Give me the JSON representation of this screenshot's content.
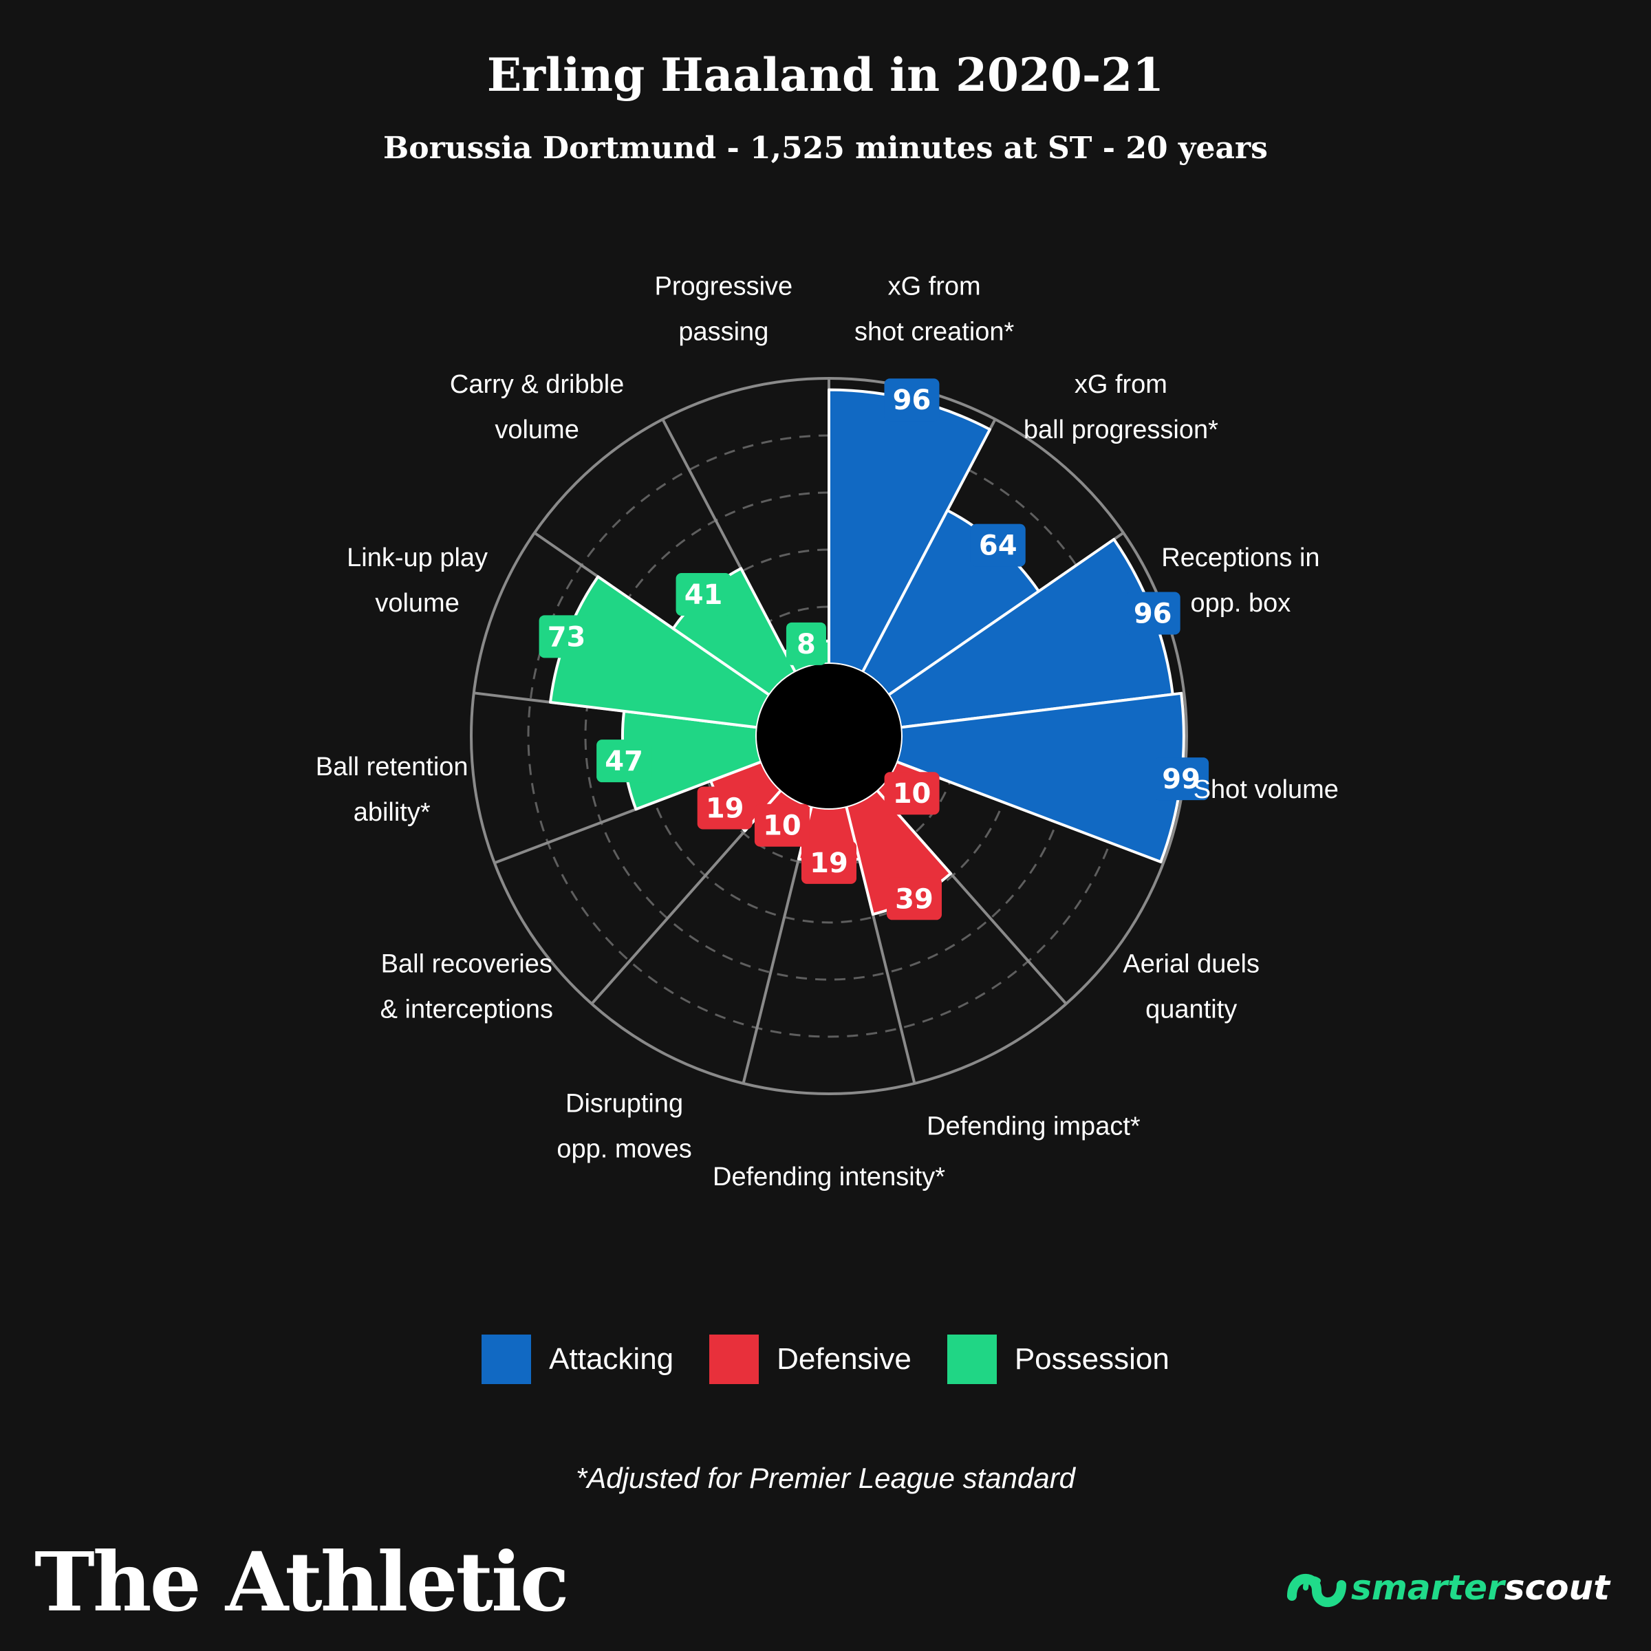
{
  "header": {
    "title": "Erling Haaland in 2020-21",
    "subtitle": "Borussia Dortmund - 1,525 minutes at ST - 20 years"
  },
  "colors": {
    "background": "#131313",
    "attacking": "#1169c3",
    "defensive": "#e8303b",
    "possession": "#20d685",
    "grid": "#8a8a8a",
    "inner_circle": "#000000"
  },
  "chart_data": {
    "type": "polar_bar",
    "scale": [
      0,
      100
    ],
    "categories": [
      {
        "label": [
          "xG from",
          "shot creation*"
        ],
        "value": 96,
        "group": "Attacking"
      },
      {
        "label": [
          "xG from",
          "ball progression*"
        ],
        "value": 64,
        "group": "Attacking"
      },
      {
        "label": [
          "Receptions in",
          "opp. box"
        ],
        "value": 96,
        "group": "Attacking"
      },
      {
        "label": [
          "Shot volume"
        ],
        "value": 99,
        "group": "Attacking"
      },
      {
        "label": [
          "Aerial duels",
          "quantity"
        ],
        "value": 10,
        "group": "Defensive"
      },
      {
        "label": [
          "Defending impact*"
        ],
        "value": 39,
        "group": "Defensive"
      },
      {
        "label": [
          "Defending intensity*"
        ],
        "value": 19,
        "group": "Defensive"
      },
      {
        "label": [
          "Disrupting",
          "opp. moves"
        ],
        "value": 10,
        "group": "Defensive"
      },
      {
        "label": [
          "Ball recoveries",
          "& interceptions"
        ],
        "value": 19,
        "group": "Defensive"
      },
      {
        "label": [
          "Ball retention",
          "ability*"
        ],
        "value": 47,
        "group": "Possession"
      },
      {
        "label": [
          "Link-up play",
          "volume"
        ],
        "value": 73,
        "group": "Possession"
      },
      {
        "label": [
          "Carry & dribble",
          "volume"
        ],
        "value": 41,
        "group": "Possession"
      },
      {
        "label": [
          "Progressive",
          "passing"
        ],
        "value": 8,
        "group": "Possession"
      }
    ],
    "legend": [
      "Attacking",
      "Defensive",
      "Possession"
    ],
    "grid": true
  },
  "footnote": "*Adjusted for Premier League standard",
  "brand": "The Athletic",
  "partner": {
    "part1": "smarter",
    "part2": "scout",
    "icon": "smarterscout-logo-icon"
  }
}
